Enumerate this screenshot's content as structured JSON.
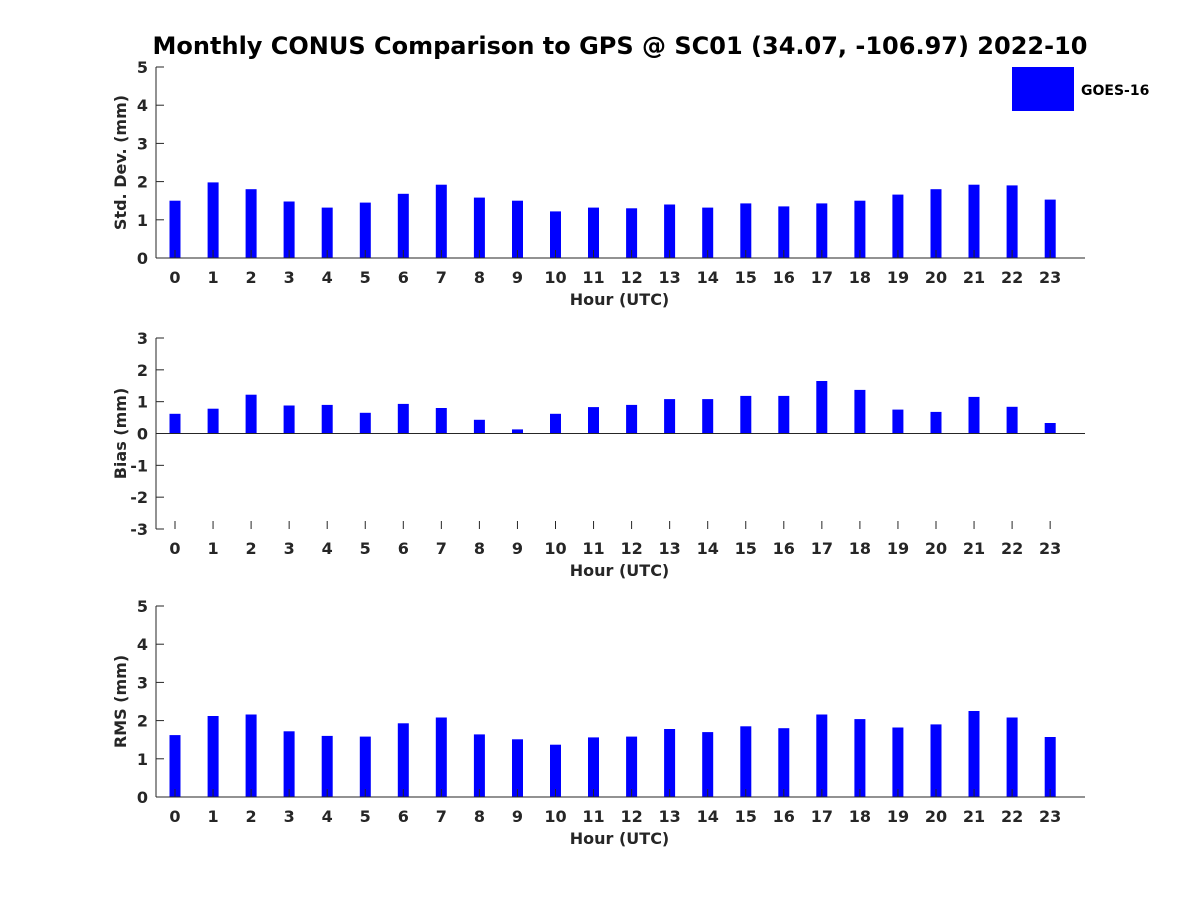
{
  "chart_data": {
    "title": "Monthly CONUS Comparison to GPS @ SC01 (34.07, -106.97) 2022-10",
    "type": "bar",
    "bar_color": "#0000ff",
    "legend": {
      "label": "GOES-16",
      "placement": "top-right"
    },
    "grid": false,
    "panels": [
      {
        "id": "std",
        "type": "bar",
        "xlabel": "Hour (UTC)",
        "ylabel": "Std. Dev. (mm)",
        "ylim": [
          0,
          5
        ],
        "yticks": [
          0,
          1,
          2,
          3,
          4,
          5
        ],
        "categories": [
          "0",
          "1",
          "2",
          "3",
          "4",
          "5",
          "6",
          "7",
          "8",
          "9",
          "10",
          "11",
          "12",
          "13",
          "14",
          "15",
          "16",
          "17",
          "18",
          "19",
          "20",
          "21",
          "22",
          "23"
        ],
        "values": [
          1.5,
          1.98,
          1.8,
          1.48,
          1.32,
          1.45,
          1.68,
          1.92,
          1.58,
          1.5,
          1.22,
          1.32,
          1.3,
          1.4,
          1.32,
          1.43,
          1.35,
          1.43,
          1.5,
          1.66,
          1.8,
          1.92,
          1.9,
          1.53
        ]
      },
      {
        "id": "bias",
        "type": "bar",
        "xlabel": "Hour (UTC)",
        "ylabel": "Bias (mm)",
        "ylim": [
          -3,
          3
        ],
        "yticks": [
          -3,
          -2,
          -1,
          0,
          1,
          2,
          3
        ],
        "categories": [
          "0",
          "1",
          "2",
          "3",
          "4",
          "5",
          "6",
          "7",
          "8",
          "9",
          "10",
          "11",
          "12",
          "13",
          "14",
          "15",
          "16",
          "17",
          "18",
          "19",
          "20",
          "21",
          "22",
          "23"
        ],
        "values": [
          0.62,
          0.78,
          1.22,
          0.88,
          0.9,
          0.65,
          0.93,
          0.8,
          0.43,
          0.13,
          0.62,
          0.83,
          0.9,
          1.08,
          1.08,
          1.18,
          1.18,
          1.65,
          1.37,
          0.75,
          0.68,
          1.15,
          0.84,
          0.33
        ]
      },
      {
        "id": "rms",
        "type": "bar",
        "xlabel": "Hour (UTC)",
        "ylabel": "RMS (mm)",
        "ylim": [
          0,
          5
        ],
        "yticks": [
          0,
          1,
          2,
          3,
          4,
          5
        ],
        "categories": [
          "0",
          "1",
          "2",
          "3",
          "4",
          "5",
          "6",
          "7",
          "8",
          "9",
          "10",
          "11",
          "12",
          "13",
          "14",
          "15",
          "16",
          "17",
          "18",
          "19",
          "20",
          "21",
          "22",
          "23"
        ],
        "values": [
          1.62,
          2.12,
          2.16,
          1.72,
          1.6,
          1.58,
          1.93,
          2.08,
          1.64,
          1.51,
          1.37,
          1.56,
          1.58,
          1.78,
          1.7,
          1.85,
          1.8,
          2.16,
          2.04,
          1.82,
          1.9,
          2.25,
          2.08,
          1.57
        ]
      }
    ]
  }
}
